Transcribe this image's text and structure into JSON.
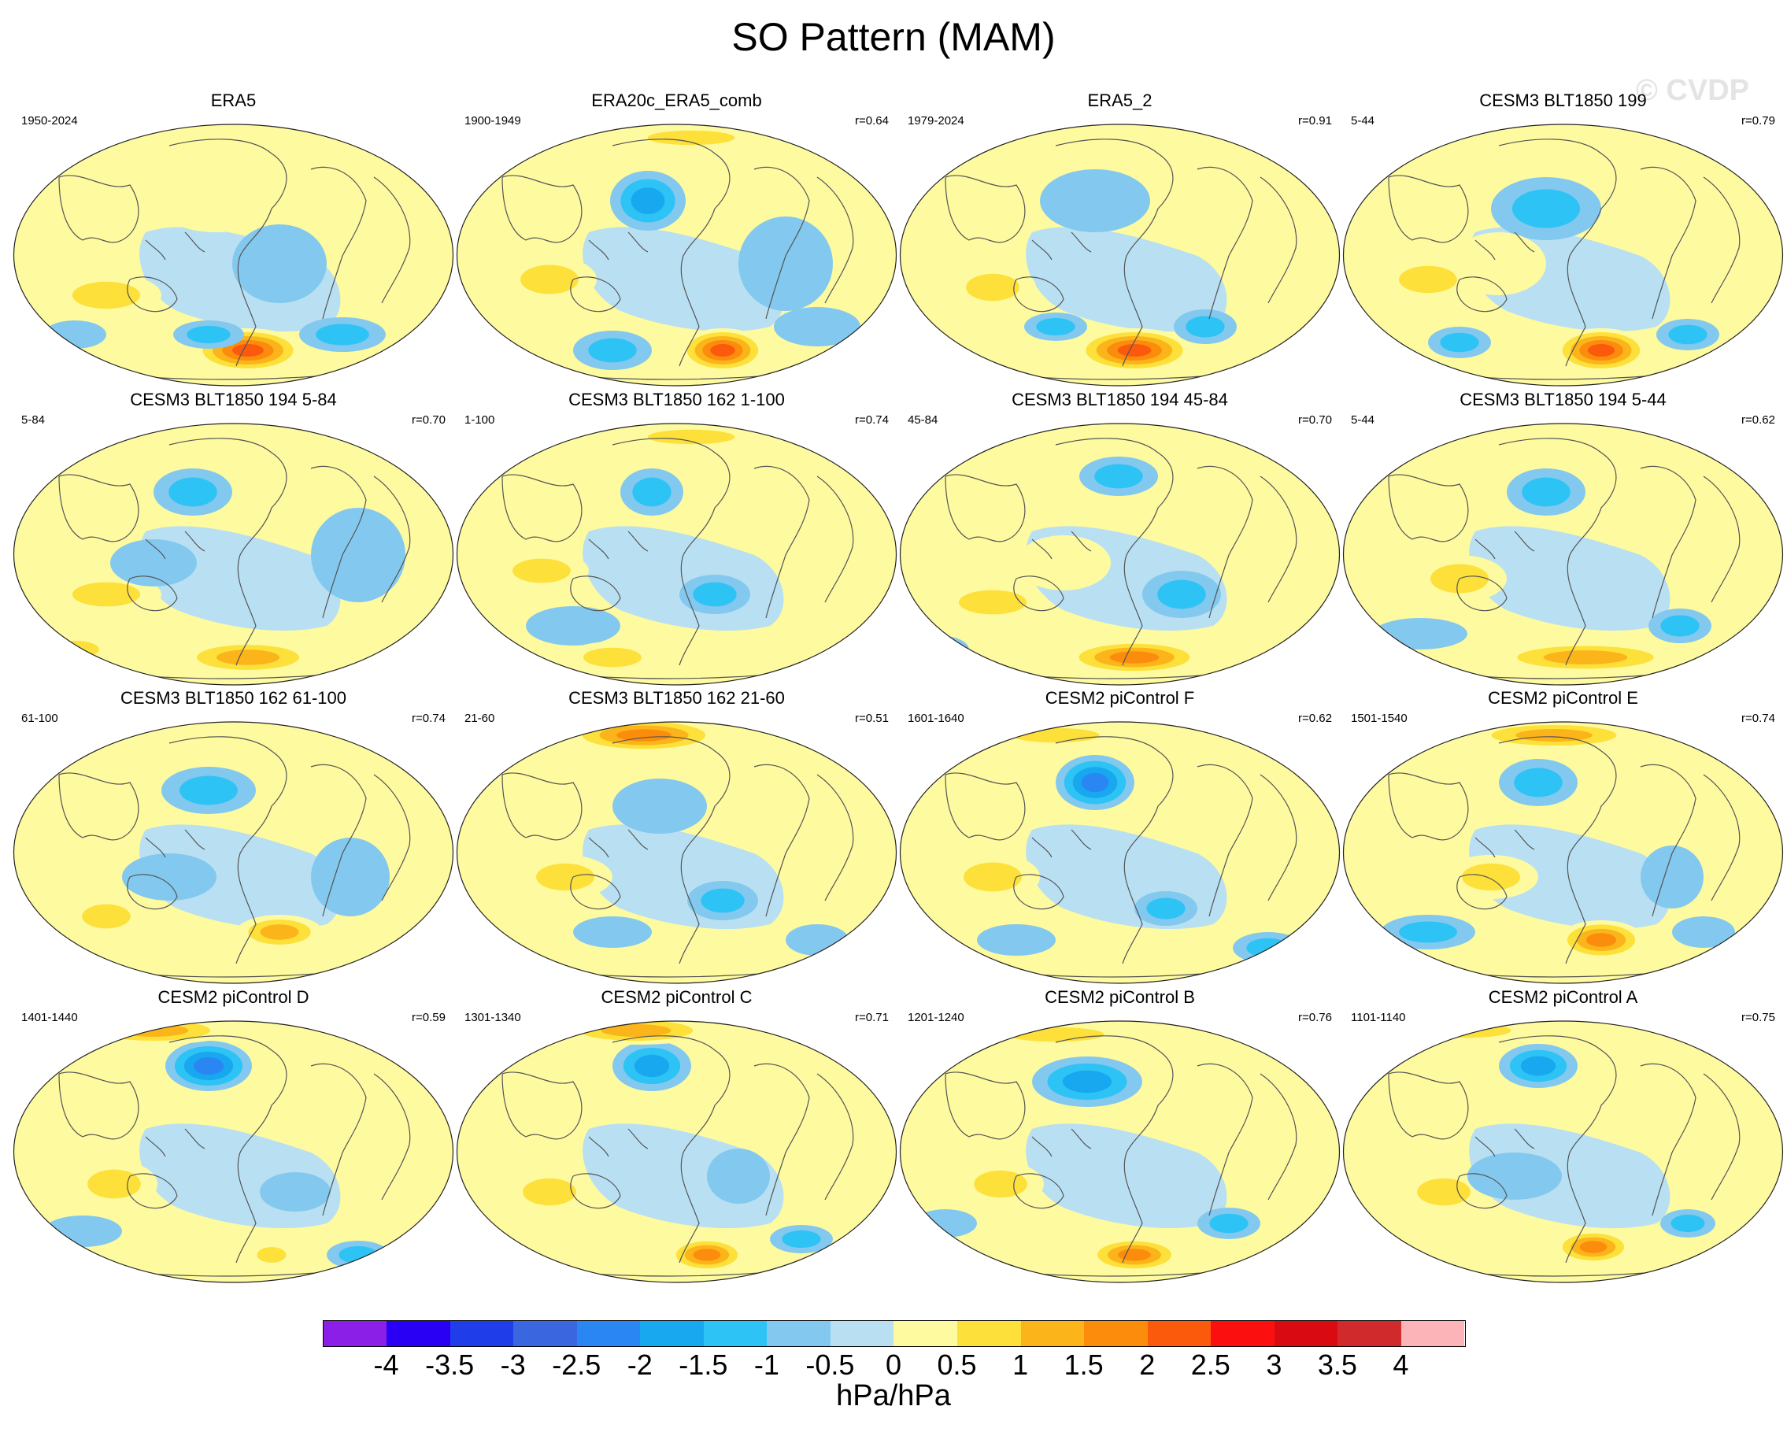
{
  "title": "SO Pattern (MAM)",
  "watermark": "© CVDP",
  "units": "hPa/hPa",
  "chart_data": {
    "type": "heatmap",
    "title": "SO Pattern (MAM)",
    "colorbar": {
      "labels": [
        "-4",
        "-3.5",
        "-3",
        "-2.5",
        "-2",
        "-1.5",
        "-1",
        "-0.5",
        "0",
        "0.5",
        "1",
        "1.5",
        "2",
        "2.5",
        "3",
        "3.5",
        "4"
      ],
      "levels": [
        -4,
        -3.5,
        -3,
        -2.5,
        -2,
        -1.5,
        -1,
        -0.5,
        0,
        0.5,
        1,
        1.5,
        2,
        2.5,
        3,
        3.5,
        4
      ],
      "colors": [
        "#8b1fe8",
        "#2a00f5",
        "#1f3de8",
        "#3a67e0",
        "#2a86f2",
        "#17a8f0",
        "#2ec3f5",
        "#83c8ee",
        "#b8e0f2",
        "#fefaa0",
        "#fde03a",
        "#fbb41a",
        "#fb8c0c",
        "#fb5a0c",
        "#fb0f0f",
        "#d90a12",
        "#d12a2d",
        "#fdb4b8"
      ],
      "units": "hPa/hPa"
    },
    "panels": [
      {
        "title": "ERA5",
        "period": "1950-2024",
        "r": ""
      },
      {
        "title": "ERA20c_ERA5_comb",
        "period": "1900-1949",
        "r": "r=0.64"
      },
      {
        "title": "ERA5_2",
        "period": "1979-2024",
        "r": "r=0.91"
      },
      {
        "title": "CESM3 BLT1850 199",
        "period": "5-44",
        "r": "r=0.79"
      },
      {
        "title": "CESM3 BLT1850 194 5-84",
        "period": "5-84",
        "r": "r=0.70"
      },
      {
        "title": "CESM3 BLT1850 162 1-100",
        "period": "1-100",
        "r": "r=0.74"
      },
      {
        "title": "CESM3 BLT1850 194 45-84",
        "period": "45-84",
        "r": "r=0.70"
      },
      {
        "title": "CESM3 BLT1850 194 5-44",
        "period": "5-44",
        "r": "r=0.62"
      },
      {
        "title": "CESM3 BLT1850 162 61-100",
        "period": "61-100",
        "r": "r=0.74"
      },
      {
        "title": "CESM3 BLT1850 162 21-60",
        "period": "21-60",
        "r": "r=0.51"
      },
      {
        "title": "CESM2 piControl F",
        "period": "1601-1640",
        "r": "r=0.62"
      },
      {
        "title": "CESM2 piControl E",
        "period": "1501-1540",
        "r": "r=0.74"
      },
      {
        "title": "CESM2 piControl D",
        "period": "1401-1440",
        "r": "r=0.59"
      },
      {
        "title": "CESM2 piControl C",
        "period": "1301-1340",
        "r": "r=0.71"
      },
      {
        "title": "CESM2 piControl B",
        "period": "1201-1240",
        "r": "r=0.76"
      },
      {
        "title": "CESM2 piControl A",
        "period": "1101-1140",
        "r": "r=0.75"
      }
    ]
  }
}
